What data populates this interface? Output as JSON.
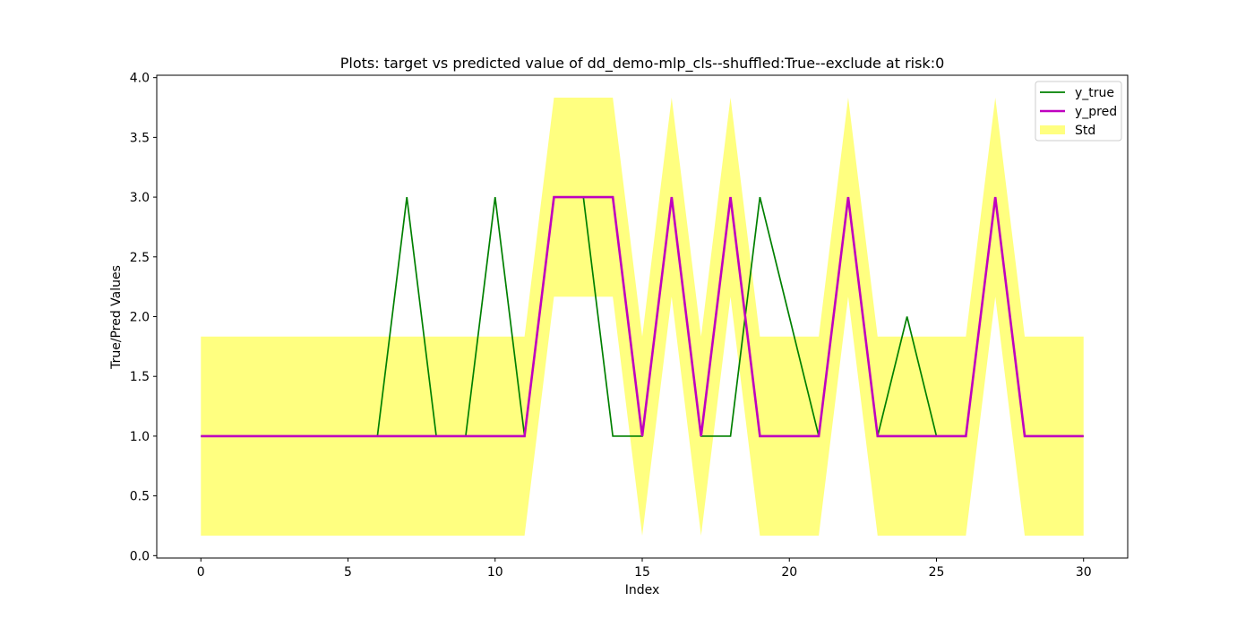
{
  "chart_data": {
    "type": "line",
    "title": "Plots: target vs predicted value of dd_demo-mlp_cls--shuffled:True--exclude at risk:0",
    "xlabel": "Index",
    "ylabel": "True/Pred Values",
    "xlim": [
      -1.5,
      31.5
    ],
    "ylim": [
      -0.02,
      4.02
    ],
    "xticks": [
      0,
      5,
      10,
      15,
      20,
      25,
      30
    ],
    "yticks": [
      0.0,
      0.5,
      1.0,
      1.5,
      2.0,
      2.5,
      3.0,
      3.5,
      4.0
    ],
    "xtick_labels": [
      "0",
      "5",
      "10",
      "15",
      "20",
      "25",
      "30"
    ],
    "ytick_labels": [
      "0.0",
      "0.5",
      "1.0",
      "1.5",
      "2.0",
      "2.5",
      "3.0",
      "3.5",
      "4.0"
    ],
    "x": [
      0,
      1,
      2,
      3,
      4,
      5,
      6,
      7,
      8,
      9,
      10,
      11,
      12,
      13,
      14,
      15,
      16,
      17,
      18,
      19,
      20,
      21,
      22,
      23,
      24,
      25,
      26,
      27,
      28,
      29,
      30
    ],
    "series": [
      {
        "name": "y_true",
        "color": "#008000",
        "values": [
          1,
          1,
          1,
          1,
          1,
          1,
          1,
          3,
          1,
          1,
          3,
          1,
          3,
          3,
          1,
          1,
          3,
          1,
          1,
          3,
          2,
          1,
          3,
          1,
          2,
          1,
          1,
          3,
          1,
          1,
          1
        ]
      },
      {
        "name": "y_pred",
        "color": "#bf00bf",
        "values": [
          1,
          1,
          1,
          1,
          1,
          1,
          1,
          1,
          1,
          1,
          1,
          1,
          3,
          3,
          3,
          1,
          3,
          1,
          3,
          1,
          1,
          1,
          3,
          1,
          1,
          1,
          1,
          3,
          1,
          1,
          1
        ]
      }
    ],
    "band": {
      "name": "Std",
      "color": "#ffff80",
      "std": 0.833
    },
    "grid": false,
    "legend_position": "top-right"
  }
}
